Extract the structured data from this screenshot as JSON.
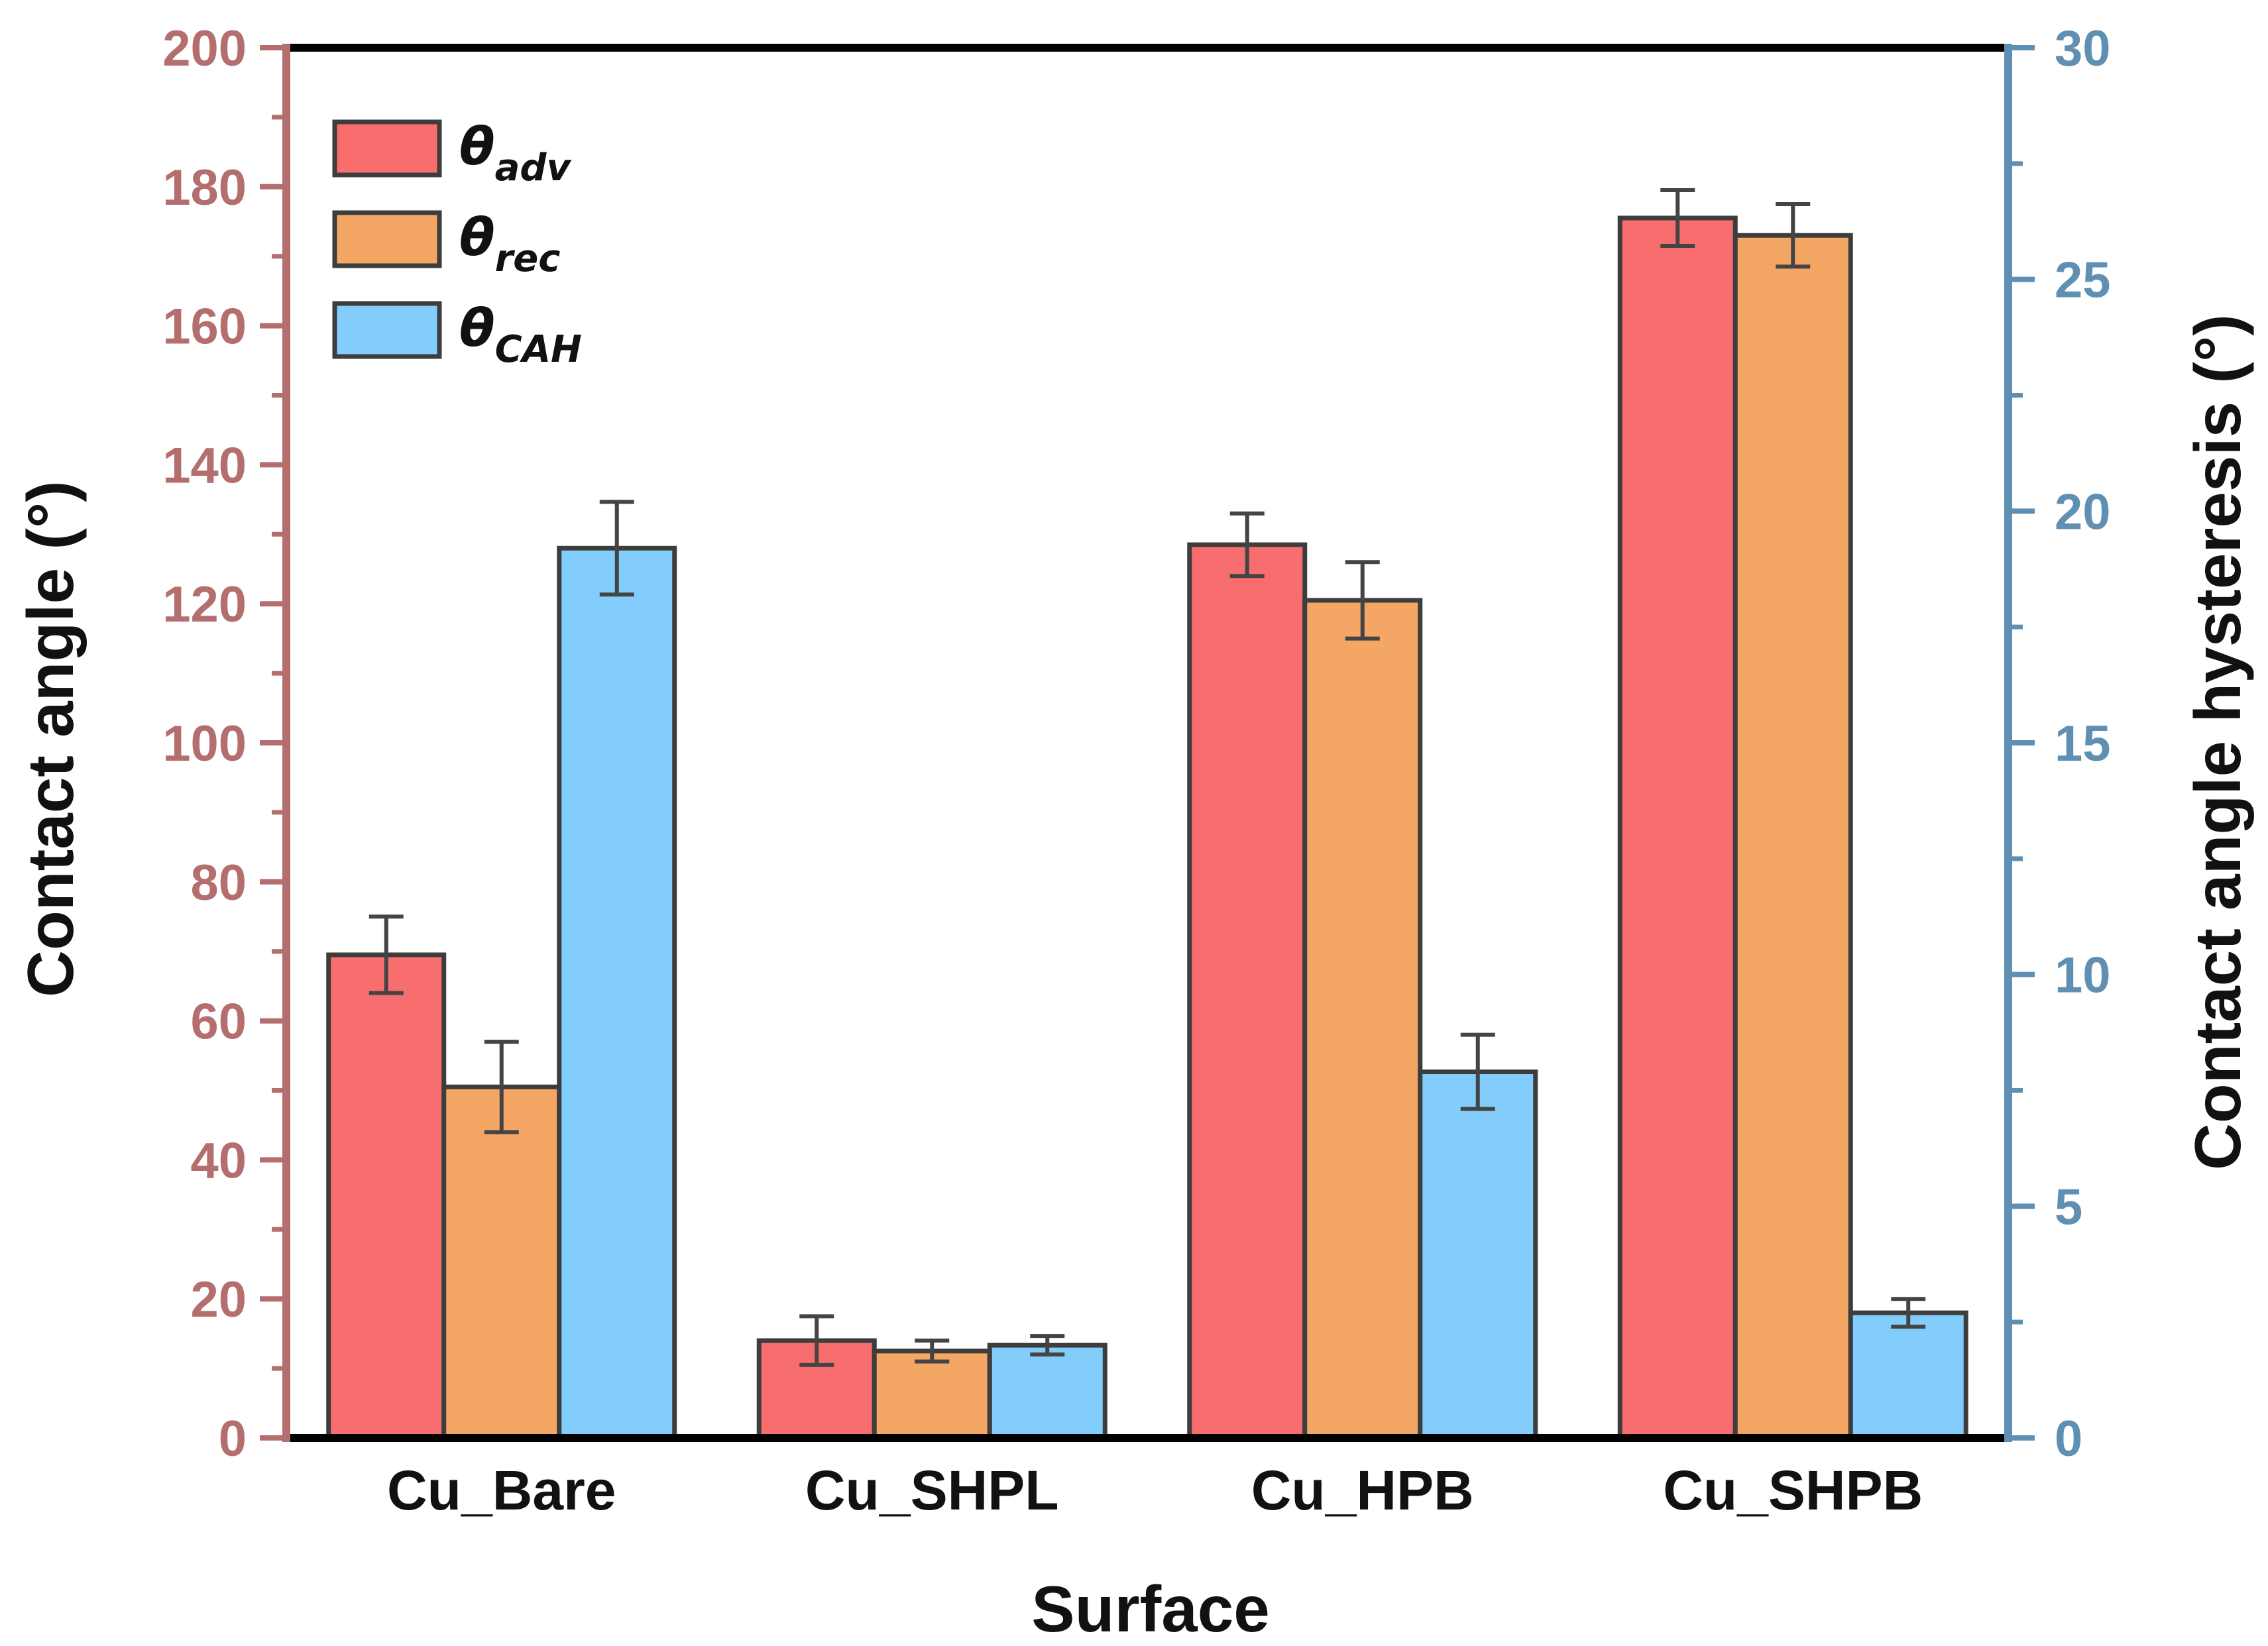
{
  "colors": {
    "left_axis": "#b46e6e",
    "right_axis": "#5f8fb2",
    "bar_outline": "#3d3d3d",
    "error_bar": "#444444",
    "frame": "#000000"
  },
  "chart_data": {
    "type": "bar",
    "title": "",
    "xlabel": "Surface",
    "ylabel": "Contact angle (°)",
    "y2label": "Contact angle hysteresis (°)",
    "categories": [
      "Cu_Bare",
      "Cu_SHPL",
      "Cu_HPB",
      "Cu_SHPB"
    ],
    "ylim": [
      0,
      200
    ],
    "y2lim": [
      0,
      30
    ],
    "yticks": [
      "0",
      "20",
      "40",
      "60",
      "80",
      "100",
      "120",
      "140",
      "160",
      "180",
      "200"
    ],
    "y2ticks": [
      "0",
      "5",
      "10",
      "15",
      "20",
      "25",
      "30"
    ],
    "grid": false,
    "legend_position": "top-left",
    "series": [
      {
        "name": "θadv",
        "symbol": "θ",
        "subscript": "adv",
        "axis": "left",
        "color": "#f86d6d",
        "values": [
          69.5,
          14.0,
          128.5,
          175.5
        ],
        "errors": [
          5.5,
          3.5,
          4.5,
          4.0
        ]
      },
      {
        "name": "θrec",
        "symbol": "θ",
        "subscript": "rec",
        "axis": "left",
        "color": "#f4a664",
        "values": [
          50.5,
          12.5,
          120.5,
          173.0
        ],
        "errors": [
          6.5,
          1.5,
          5.5,
          4.5
        ]
      },
      {
        "name": "θCAH",
        "symbol": "θ",
        "subscript": "CAH",
        "axis": "right",
        "color": "#82cdfc",
        "values": [
          19.2,
          2.0,
          7.9,
          2.7
        ],
        "errors": [
          1.0,
          0.2,
          0.8,
          0.3
        ]
      }
    ]
  }
}
